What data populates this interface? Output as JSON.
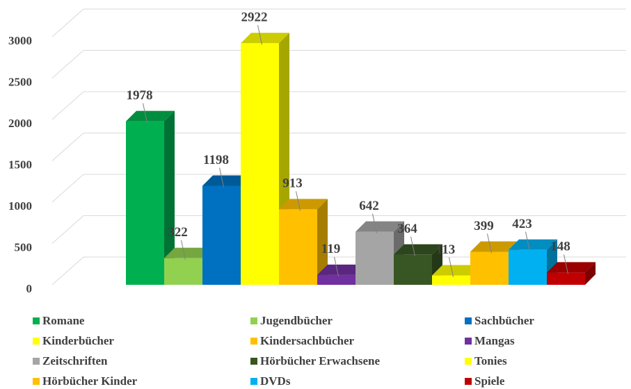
{
  "chart_data": {
    "type": "bar3d",
    "categories": [
      "Romane",
      "Jugendbücher",
      "Sachbücher",
      "Kinderbücher",
      "Kindersachbücher",
      "Mangas",
      "Zeitschriften",
      "Hörbücher Erwachsene",
      "Tonies",
      "Hörbücher Kinder",
      "DVDs",
      "Spiele"
    ],
    "values": [
      1978,
      322,
      1198,
      2922,
      913,
      119,
      642,
      364,
      113,
      399,
      423,
      148
    ],
    "colors": [
      "#00b050",
      "#92d050",
      "#0070c0",
      "#ffff00",
      "#ffc000",
      "#7030a0",
      "#a5a5a5",
      "#375623",
      "#ffff00",
      "#ffc000",
      "#00b0f0",
      "#c00000"
    ],
    "ylim": [
      0,
      3000
    ],
    "yticks": [
      0,
      500,
      1000,
      1500,
      2000,
      2500,
      3000
    ],
    "grid": true,
    "legend": "bottom"
  }
}
